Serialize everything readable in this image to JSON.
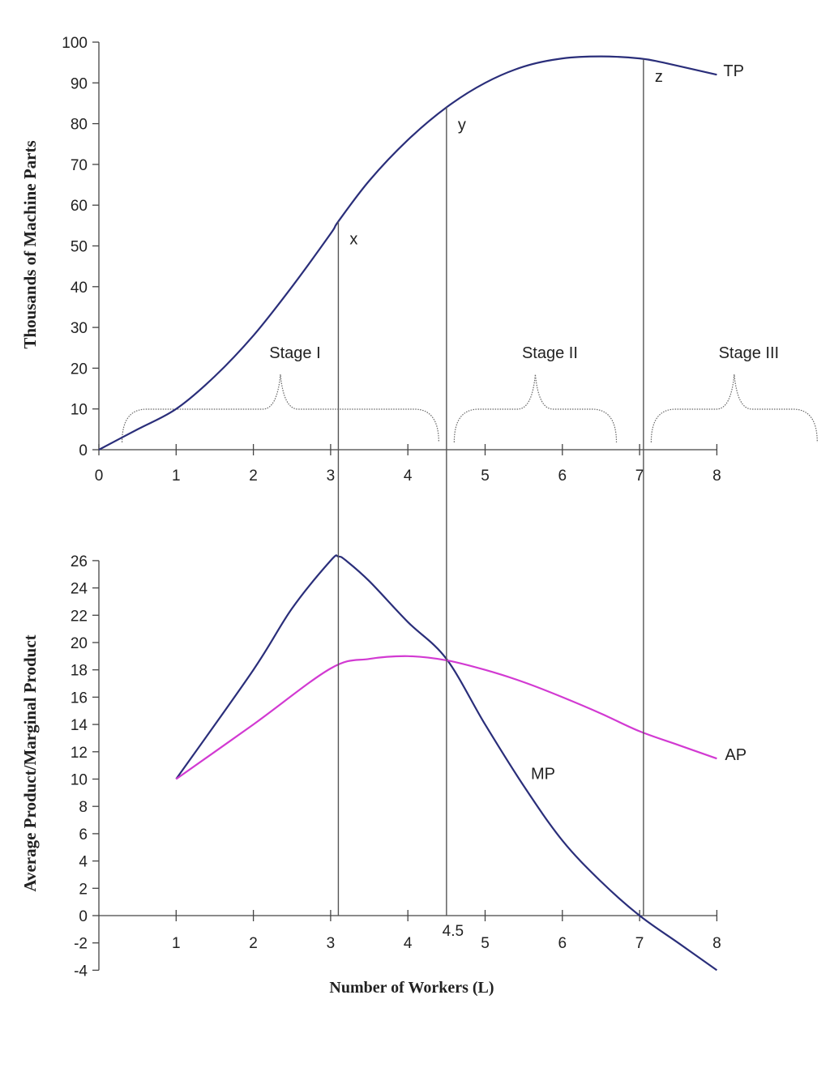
{
  "chart_data": [
    {
      "type": "line",
      "ylabel": "Thousands of Machine Parts",
      "xlabel": "",
      "xlim": [
        0,
        8
      ],
      "ylim": [
        0,
        100
      ],
      "xticks": [
        "0",
        "1",
        "2",
        "3",
        "4",
        "5",
        "6",
        "7",
        "8"
      ],
      "yticks": [
        "0",
        "10",
        "20",
        "30",
        "40",
        "50",
        "60",
        "70",
        "80",
        "90",
        "100"
      ],
      "series": [
        {
          "name": "TP",
          "color": "#2a2e7a",
          "x": [
            0,
            0.5,
            1,
            1.5,
            2,
            2.5,
            3,
            3.1,
            3.5,
            4,
            4.5,
            5,
            5.5,
            6,
            6.5,
            7,
            7.3,
            8
          ],
          "y": [
            0,
            5,
            10,
            18,
            28,
            40,
            53,
            56,
            66,
            76,
            84,
            90,
            94,
            96,
            96.5,
            96,
            95,
            92
          ]
        }
      ],
      "point_labels": [
        {
          "text": "x",
          "x": 3.1
        },
        {
          "text": "y",
          "x": 4.5
        },
        {
          "text": "z",
          "x": 7.05
        }
      ],
      "stages": [
        {
          "label": "Stage I",
          "from": 0.3,
          "to": 4.4
        },
        {
          "label": "Stage II",
          "from": 4.6,
          "to": 6.7
        },
        {
          "label": "Stage III",
          "from": 7.15,
          "to": 9.3
        }
      ]
    },
    {
      "type": "line",
      "ylabel": "Average Product/Marginal Product",
      "xlabel": "Number of Workers (L)",
      "xlim": [
        0,
        8
      ],
      "ylim": [
        -4,
        26
      ],
      "xticks": [
        "1",
        "2",
        "3",
        "4",
        "5",
        "6",
        "7",
        "8"
      ],
      "extra_xtick": "4.5",
      "yticks": [
        "-4",
        "-2",
        "0",
        "2",
        "4",
        "6",
        "8",
        "10",
        "12",
        "14",
        "16",
        "18",
        "20",
        "22",
        "24",
        "26"
      ],
      "series": [
        {
          "name": "MP",
          "color": "#2a2e7a",
          "x": [
            1,
            2,
            2.5,
            3,
            3.1,
            3.2,
            3.5,
            4,
            4.5,
            5,
            5.5,
            6,
            6.5,
            7,
            7.5,
            8
          ],
          "y": [
            10,
            18,
            22.5,
            26,
            26.3,
            26,
            24.5,
            21.5,
            18.8,
            14,
            9.5,
            5.5,
            2.5,
            0,
            -2,
            -4
          ]
        },
        {
          "name": "AP",
          "color": "#d23ad2",
          "x": [
            1,
            2,
            3,
            3.5,
            4,
            4.5,
            5,
            5.5,
            6,
            6.5,
            7,
            7.5,
            8
          ],
          "y": [
            10,
            14,
            18.1,
            18.8,
            19,
            18.7,
            18,
            17.1,
            16,
            14.8,
            13.5,
            12.5,
            11.5
          ]
        }
      ]
    }
  ]
}
